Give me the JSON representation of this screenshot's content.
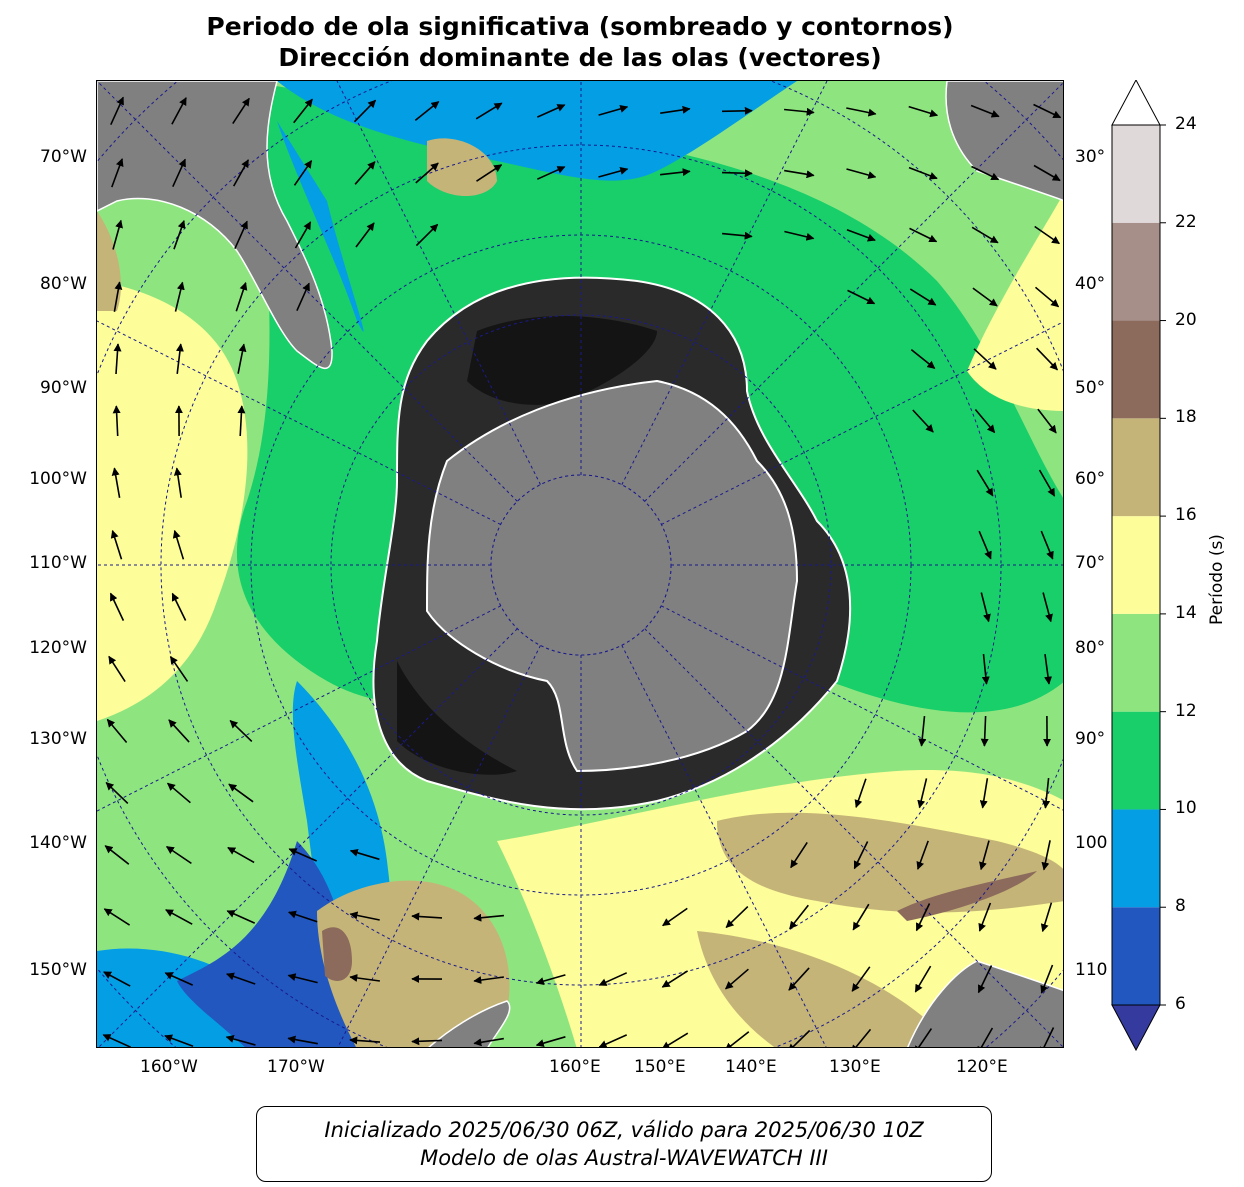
{
  "title": {
    "line1": "Periodo de ola significativa (sombreado y contornos)",
    "line2": "Dirección dominante de las olas (vectores)"
  },
  "map": {
    "projection": "south-polar-stereographic",
    "fill_colors": {
      "land": "#808080",
      "sea_ice_dark": "#141414",
      "sea_ice_mid": "#3a3a3a",
      "background_field": "#8ee57f",
      "graticule": "#1a1a8c",
      "coast": "#ffffff",
      "vector": "#000000"
    },
    "longitude_labels_left": [
      "70°W",
      "80°W",
      "90°W",
      "100°W",
      "110°W",
      "120°W",
      "130°W",
      "140°W",
      "150°W"
    ],
    "longitude_labels_right": [
      "30°",
      "40°",
      "50°",
      "60°",
      "70°",
      "80°",
      "90°",
      "100",
      "110"
    ],
    "longitude_labels_bottom": [
      "160°W",
      "170°W",
      "160°E",
      "150°E",
      "140°E",
      "130°E",
      "120°E"
    ]
  },
  "colorbar": {
    "label": "Período (s)",
    "ticks": [
      "6",
      "8",
      "10",
      "12",
      "14",
      "16",
      "18",
      "20",
      "22",
      "24"
    ],
    "bins": [
      {
        "from": 6,
        "to": 8,
        "color": "#2257bf"
      },
      {
        "from": 8,
        "to": 10,
        "color": "#049ee5"
      },
      {
        "from": 10,
        "to": 12,
        "color": "#19cf69"
      },
      {
        "from": 12,
        "to": 14,
        "color": "#8ee57f"
      },
      {
        "from": 14,
        "to": 16,
        "color": "#fdfd99"
      },
      {
        "from": 16,
        "to": 18,
        "color": "#c5b478"
      },
      {
        "from": 18,
        "to": 20,
        "color": "#8c6b5c"
      },
      {
        "from": 20,
        "to": 22,
        "color": "#a78f89"
      },
      {
        "from": 22,
        "to": 24,
        "color": "#e0d9d9"
      }
    ],
    "under_color": "#343a9e",
    "over_color": "#ffffff"
  },
  "footer": {
    "line1": "Inicializado 2025/06/30 06Z, válido para 2025/06/30 10Z",
    "line2": "Modelo de olas Austral-WAVEWATCH III"
  }
}
